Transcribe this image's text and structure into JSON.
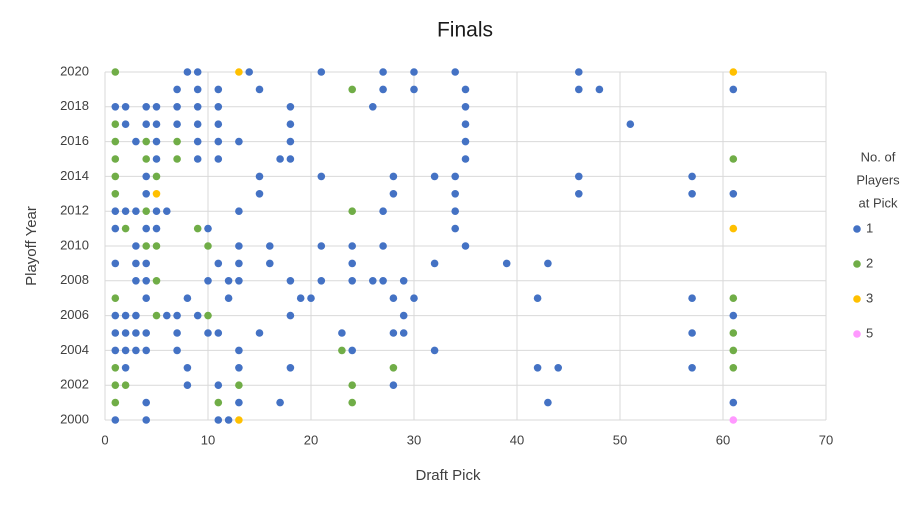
{
  "chart_data": {
    "type": "scatter",
    "title": "Finals",
    "x_label": "Draft Pick",
    "y_label": "Playoff Year",
    "legend_title": [
      "No. of",
      "Players",
      "at Pick"
    ],
    "legend_position": "right",
    "grid": true,
    "xlim": [
      0,
      70
    ],
    "xticks": [
      0,
      10,
      20,
      30,
      40,
      50,
      60,
      70
    ],
    "ylim": [
      2000,
      2020
    ],
    "yticks": [
      2000,
      2002,
      2004,
      2006,
      2008,
      2010,
      2012,
      2014,
      2016,
      2018,
      2020
    ],
    "series": [
      {
        "name": "1",
        "color": "#4472c4",
        "x": [
          8,
          9,
          14,
          21,
          27,
          30,
          34,
          46,
          7,
          9,
          11,
          15,
          27,
          30,
          35,
          46,
          48,
          61,
          1,
          2,
          4,
          5,
          7,
          9,
          11,
          18,
          26,
          35,
          2,
          4,
          5,
          7,
          9,
          11,
          18,
          35,
          51,
          3,
          5,
          9,
          11,
          13,
          18,
          35,
          5,
          9,
          11,
          17,
          18,
          35,
          4,
          15,
          21,
          28,
          32,
          34,
          46,
          57,
          4,
          15,
          28,
          34,
          46,
          57,
          61,
          1,
          2,
          3,
          5,
          6,
          13,
          27,
          34,
          1,
          4,
          5,
          10,
          34,
          3,
          13,
          16,
          21,
          24,
          27,
          35,
          1,
          3,
          4,
          11,
          13,
          16,
          24,
          32,
          39,
          43,
          3,
          4,
          10,
          12,
          13,
          18,
          21,
          24,
          26,
          27,
          29,
          4,
          8,
          12,
          19,
          20,
          28,
          30,
          42,
          57,
          1,
          2,
          3,
          6,
          7,
          9,
          18,
          29,
          61,
          1,
          2,
          3,
          4,
          7,
          10,
          11,
          15,
          23,
          28,
          29,
          57,
          1,
          2,
          3,
          4,
          7,
          13,
          24,
          32,
          2,
          8,
          13,
          18,
          42,
          44,
          57,
          8,
          11,
          28,
          4,
          13,
          17,
          43,
          61,
          1,
          4,
          11,
          12
        ],
        "values": [
          2020,
          2020,
          2020,
          2020,
          2020,
          2020,
          2020,
          2020,
          2019,
          2019,
          2019,
          2019,
          2019,
          2019,
          2019,
          2019,
          2019,
          2019,
          2018,
          2018,
          2018,
          2018,
          2018,
          2018,
          2018,
          2018,
          2018,
          2018,
          2017,
          2017,
          2017,
          2017,
          2017,
          2017,
          2017,
          2017,
          2017,
          2016,
          2016,
          2016,
          2016,
          2016,
          2016,
          2016,
          2015,
          2015,
          2015,
          2015,
          2015,
          2015,
          2014,
          2014,
          2014,
          2014,
          2014,
          2014,
          2014,
          2014,
          2013,
          2013,
          2013,
          2013,
          2013,
          2013,
          2013,
          2012,
          2012,
          2012,
          2012,
          2012,
          2012,
          2012,
          2012,
          2011,
          2011,
          2011,
          2011,
          2011,
          2010,
          2010,
          2010,
          2010,
          2010,
          2010,
          2010,
          2009,
          2009,
          2009,
          2009,
          2009,
          2009,
          2009,
          2009,
          2009,
          2009,
          2008,
          2008,
          2008,
          2008,
          2008,
          2008,
          2008,
          2008,
          2008,
          2008,
          2008,
          2007,
          2007,
          2007,
          2007,
          2007,
          2007,
          2007,
          2007,
          2007,
          2006,
          2006,
          2006,
          2006,
          2006,
          2006,
          2006,
          2006,
          2006,
          2005,
          2005,
          2005,
          2005,
          2005,
          2005,
          2005,
          2005,
          2005,
          2005,
          2005,
          2005,
          2004,
          2004,
          2004,
          2004,
          2004,
          2004,
          2004,
          2004,
          2003,
          2003,
          2003,
          2003,
          2003,
          2003,
          2003,
          2002,
          2002,
          2002,
          2001,
          2001,
          2001,
          2001,
          2001,
          2000,
          2000,
          2000,
          2000
        ]
      },
      {
        "name": "2",
        "color": "#70ad47",
        "x": [
          1,
          24,
          1,
          1,
          4,
          7,
          1,
          4,
          7,
          61,
          1,
          5,
          1,
          4,
          24,
          2,
          9,
          4,
          5,
          10,
          5,
          1,
          61,
          5,
          10,
          61,
          23,
          61,
          1,
          28,
          61,
          1,
          2,
          13,
          24,
          1,
          11,
          24
        ],
        "values": [
          2020,
          2019,
          2017,
          2016,
          2016,
          2016,
          2015,
          2015,
          2015,
          2015,
          2014,
          2014,
          2013,
          2012,
          2012,
          2011,
          2011,
          2010,
          2010,
          2010,
          2008,
          2007,
          2007,
          2006,
          2006,
          2005,
          2004,
          2004,
          2003,
          2003,
          2003,
          2002,
          2002,
          2002,
          2002,
          2001,
          2001,
          2001
        ]
      },
      {
        "name": "3",
        "color": "#ffc000",
        "x": [
          13,
          61,
          5,
          61,
          13
        ],
        "values": [
          2020,
          2020,
          2013,
          2011,
          2000
        ]
      },
      {
        "name": "5",
        "color": "#ff99ff",
        "x": [
          61
        ],
        "values": [
          2000
        ]
      }
    ]
  }
}
